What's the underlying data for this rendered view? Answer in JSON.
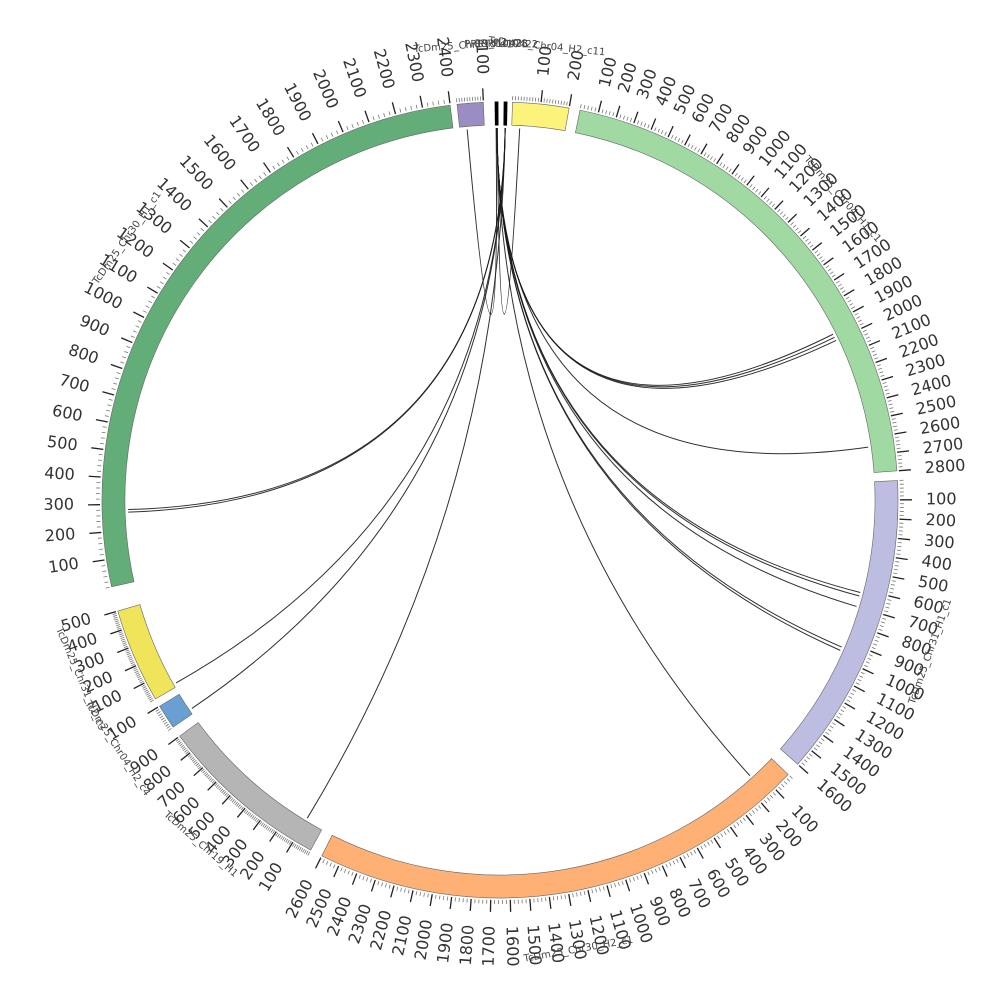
{
  "chromosomes": [
    {
      "id": "c0",
      "name": "TcDm25_Chr04_H2_c11",
      "length": 200,
      "tick_step": 100,
      "color": "#fbf37a",
      "label_start": 100
    },
    {
      "id": "c1",
      "name": "TcDm25_Chr04_H1_c1",
      "length": 2800,
      "tick_step": 100,
      "color": "#a0d9a2",
      "label_start": 100
    },
    {
      "id": "c2",
      "name": "TcDm25_Chr31_H1_c1",
      "length": 1600,
      "tick_step": 100,
      "color": "#bcbde0",
      "label_start": 100
    },
    {
      "id": "c3",
      "name": "TcDm25_Chr30_H2_c1",
      "length": 2600,
      "tick_step": 100,
      "color": "#feb075",
      "label_start": 100
    },
    {
      "id": "c4",
      "name": "TcDm25_Chr19_H1",
      "length": 900,
      "tick_step": 100,
      "color": "#b5b5b5",
      "label_start": 100
    },
    {
      "id": "c5",
      "name": "TcDm25_Chr04_H2_c4",
      "length": 100,
      "tick_step": 100,
      "color": "#6a9fd4",
      "label_start": 100
    },
    {
      "id": "c6",
      "name": "TcDm25_Chr31_H2_c3",
      "length": 500,
      "tick_step": 100,
      "color": "#efe45a",
      "label_start": 100
    },
    {
      "id": "c7",
      "name": "TcDm25_Chr30_H1_c1",
      "length": 2400,
      "tick_step": 100,
      "color": "#63ad78",
      "label_start": 100
    },
    {
      "id": "c8",
      "name": "TcDm25_Chr19_H2_c",
      "length": 100,
      "tick_step": 100,
      "color": "#9c8cc4",
      "label_start": 100
    },
    {
      "id": "c9",
      "name": "PRRTd10428",
      "length": 20,
      "tick_step": 100,
      "color": "#000000",
      "label_start": 100
    },
    {
      "id": "c10",
      "name": "PRRTd10422",
      "length": 20,
      "tick_step": 100,
      "color": "#000000",
      "label_start": 100
    }
  ],
  "links": [
    {
      "from_chr": "c9",
      "from_pos": 10,
      "to_chr": "c1",
      "to_pos": 1960
    },
    {
      "from_chr": "c9",
      "from_pos": 10,
      "to_chr": "c1",
      "to_pos": 1980
    },
    {
      "from_chr": "c9",
      "from_pos": 10,
      "to_chr": "c1",
      "to_pos": 2000
    },
    {
      "from_chr": "c9",
      "from_pos": 10,
      "to_chr": "c1",
      "to_pos": 2650
    },
    {
      "from_chr": "c9",
      "from_pos": 10,
      "to_chr": "c2",
      "to_pos": 620
    },
    {
      "from_chr": "c9",
      "from_pos": 10,
      "to_chr": "c2",
      "to_pos": 640
    },
    {
      "from_chr": "c9",
      "from_pos": 10,
      "to_chr": "c2",
      "to_pos": 700
    },
    {
      "from_chr": "c9",
      "from_pos": 10,
      "to_chr": "c2",
      "to_pos": 940
    },
    {
      "from_chr": "c9",
      "from_pos": 10,
      "to_chr": "c2",
      "to_pos": 960
    },
    {
      "from_chr": "c9",
      "from_pos": 10,
      "to_chr": "c3",
      "to_pos": 150
    },
    {
      "from_chr": "c10",
      "from_pos": 10,
      "to_chr": "c4",
      "to_pos": 100
    },
    {
      "from_chr": "c10",
      "from_pos": 10,
      "to_chr": "c5",
      "to_pos": 20
    },
    {
      "from_chr": "c10",
      "from_pos": 10,
      "to_chr": "c6",
      "to_pos": 20
    },
    {
      "from_chr": "c10",
      "from_pos": 10,
      "to_chr": "c7",
      "to_pos": 270
    },
    {
      "from_chr": "c10",
      "from_pos": 10,
      "to_chr": "c7",
      "to_pos": 280
    },
    {
      "from_chr": "c9",
      "from_pos": 5,
      "to_chr": "c8",
      "to_pos": 30
    },
    {
      "from_chr": "c9",
      "from_pos": 15,
      "to_chr": "c0",
      "to_pos": 30
    }
  ]
}
